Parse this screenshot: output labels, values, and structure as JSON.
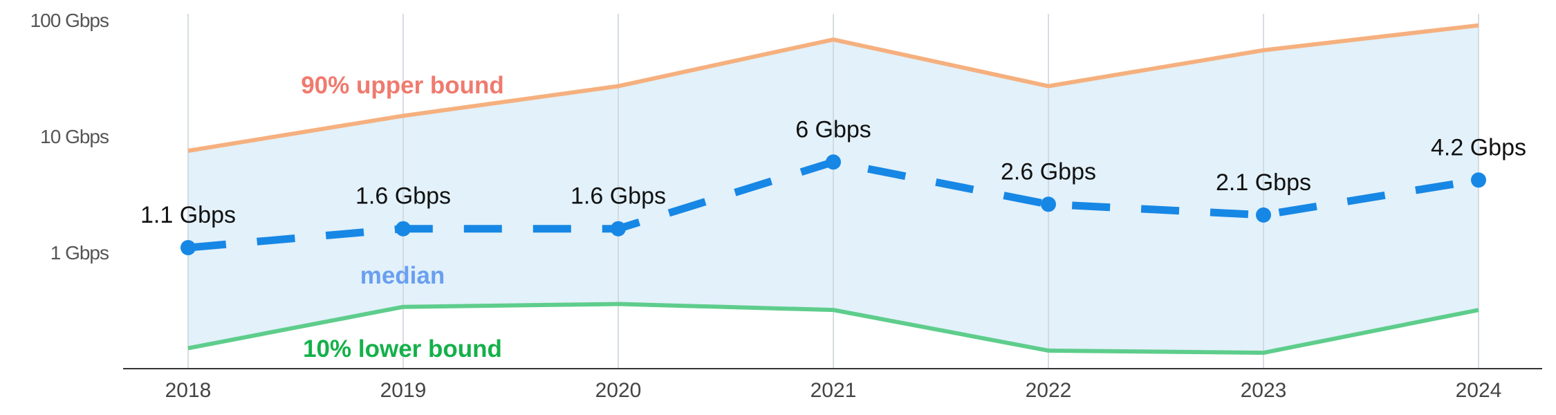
{
  "chart_data": {
    "type": "line",
    "x": [
      "2018",
      "2019",
      "2020",
      "2021",
      "2022",
      "2023",
      "2024"
    ],
    "y_scale": "log",
    "y_ticks": [
      {
        "value": 100,
        "label": "100 Gbps"
      },
      {
        "value": 10,
        "label": "10 Gbps"
      },
      {
        "value": 1,
        "label": "1 Gbps"
      }
    ],
    "ylim": [
      0.09,
      130
    ],
    "grid": {
      "vertical": true,
      "horizontal": false
    },
    "band": {
      "between": [
        "upper",
        "lower"
      ],
      "color": "#e2f1fa"
    },
    "series": [
      {
        "key": "upper",
        "name": "90% upper bound",
        "color": "#f5b07e",
        "label_color": "#ef7a6e",
        "style": "solid",
        "label_position": {
          "after_index": 1
        },
        "values": [
          7.5,
          15,
          27,
          68,
          27,
          55,
          90
        ]
      },
      {
        "key": "median",
        "name": "median",
        "color": "#1787e5",
        "label_color": "#6a9ff0",
        "style": "dashed",
        "markers": true,
        "values": [
          1.1,
          1.6,
          1.6,
          6,
          2.6,
          2.1,
          4.2
        ],
        "data_labels": [
          "1.1 Gbps",
          "1.6 Gbps",
          "1.6 Gbps",
          "6 Gbps",
          "2.6 Gbps",
          "2.1 Gbps",
          "4.2 Gbps"
        ]
      },
      {
        "key": "lower",
        "name": "10% lower bound",
        "color": "#5ecd8c",
        "label_color": "#15b04a",
        "style": "solid",
        "values": [
          0.15,
          0.34,
          0.36,
          0.32,
          0.143,
          0.137,
          0.32
        ]
      }
    ]
  }
}
